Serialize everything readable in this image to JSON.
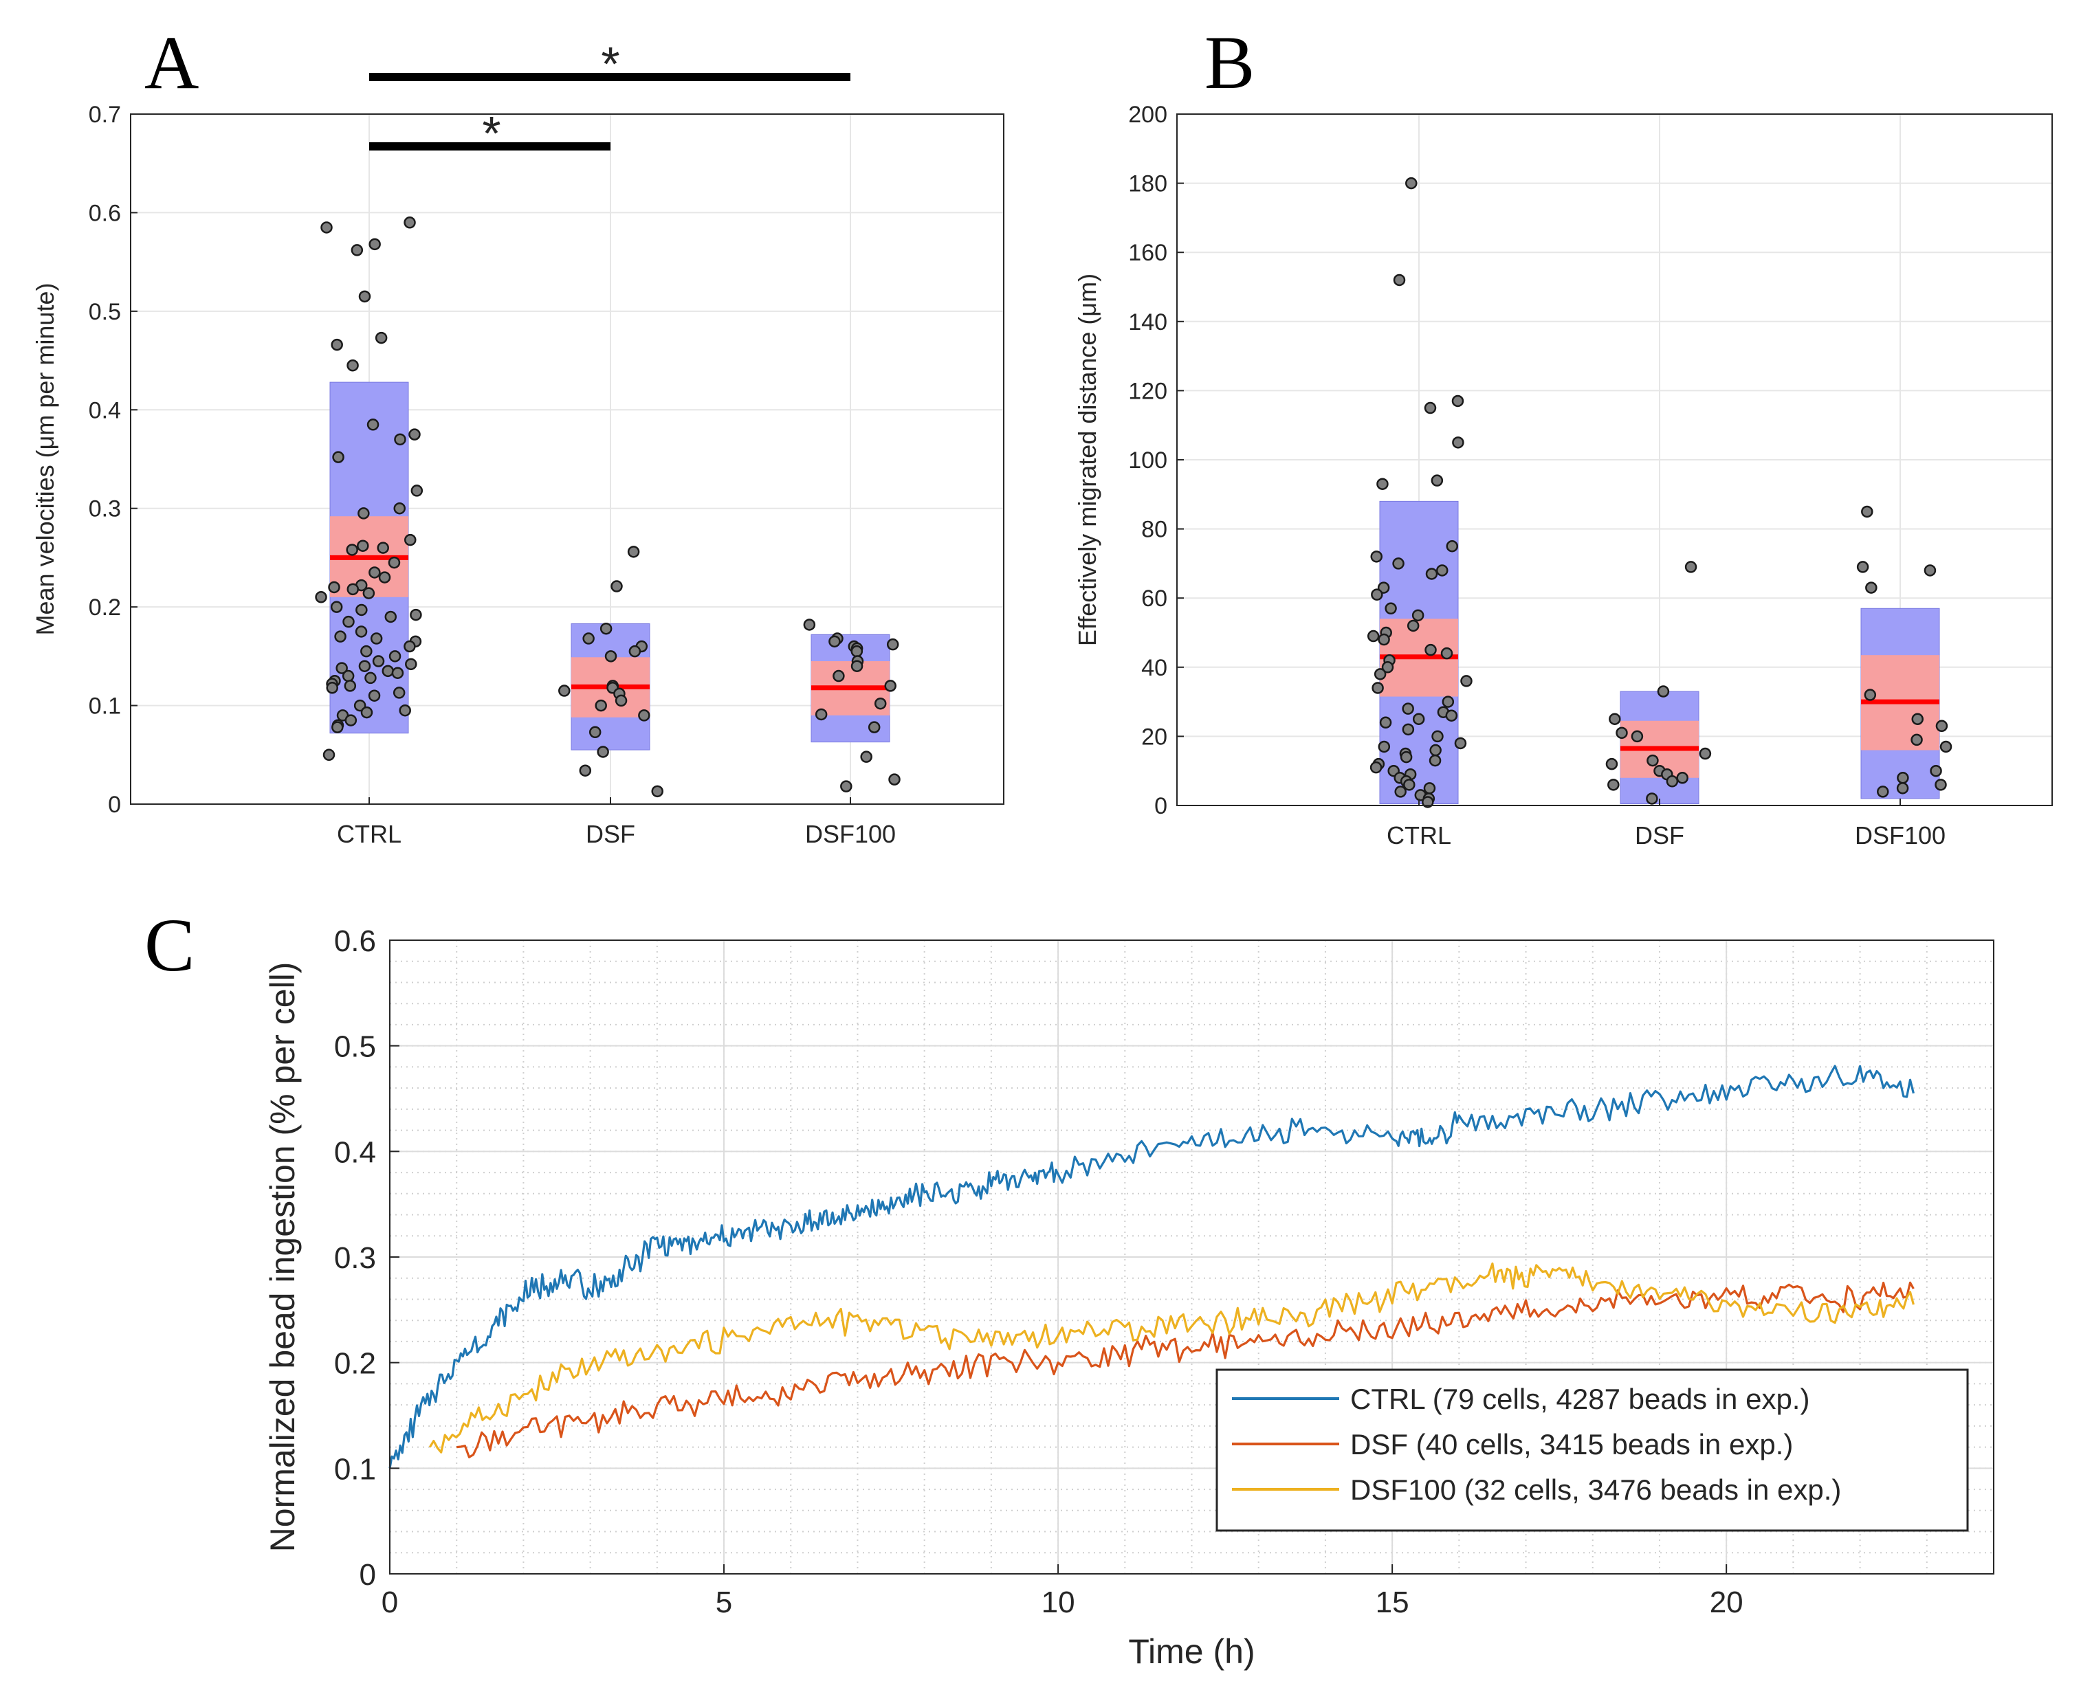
{
  "panels": {
    "A": "A",
    "B": "B",
    "C": "C"
  },
  "colors": {
    "iqr_box": "#9e9ef8",
    "sem_box": "#f7a0a0",
    "mean_line": "#ff0000",
    "dot_fill": "#7f7f7f",
    "ctrl": "#1f77b4",
    "dsf": "#d9541a",
    "dsf100": "#edb120"
  },
  "chart_data": [
    {
      "id": "A",
      "type": "box-scatter",
      "ylabel": "Mean velocities (μm per minute)",
      "ylim": [
        0,
        0.7
      ],
      "yticks": [
        0,
        0.1,
        0.2,
        0.3,
        0.4,
        0.5,
        0.6,
        0.7
      ],
      "tick_labels": [
        "0",
        "0.1",
        "0.2",
        "0.3",
        "0.4",
        "0.5",
        "0.6",
        "0.7"
      ],
      "categories": [
        "CTRL",
        "DSF",
        "DSF100"
      ],
      "groups": [
        {
          "name": "CTRL",
          "q1": 0.072,
          "q3": 0.428,
          "sem_low": 0.21,
          "sem_high": 0.292,
          "mean": 0.25,
          "points": [
            0.59,
            0.585,
            0.568,
            0.562,
            0.515,
            0.473,
            0.466,
            0.445,
            0.385,
            0.375,
            0.37,
            0.352,
            0.318,
            0.3,
            0.295,
            0.268,
            0.262,
            0.26,
            0.258,
            0.245,
            0.235,
            0.23,
            0.222,
            0.22,
            0.218,
            0.214,
            0.21,
            0.2,
            0.197,
            0.192,
            0.19,
            0.185,
            0.175,
            0.17,
            0.168,
            0.165,
            0.16,
            0.155,
            0.15,
            0.145,
            0.142,
            0.14,
            0.138,
            0.135,
            0.133,
            0.13,
            0.128,
            0.125,
            0.122,
            0.12,
            0.118,
            0.113,
            0.11,
            0.1,
            0.095,
            0.093,
            0.09,
            0.085,
            0.08,
            0.078,
            0.05
          ]
        },
        {
          "name": "DSF",
          "q1": 0.055,
          "q3": 0.183,
          "sem_low": 0.088,
          "sem_high": 0.149,
          "mean": 0.119,
          "points": [
            0.256,
            0.221,
            0.178,
            0.168,
            0.16,
            0.155,
            0.15,
            0.12,
            0.118,
            0.115,
            0.112,
            0.105,
            0.1,
            0.09,
            0.073,
            0.053,
            0.034,
            0.013
          ]
        },
        {
          "name": "DSF100",
          "q1": 0.063,
          "q3": 0.172,
          "sem_low": 0.09,
          "sem_high": 0.145,
          "mean": 0.118,
          "points": [
            0.182,
            0.168,
            0.165,
            0.162,
            0.16,
            0.158,
            0.155,
            0.145,
            0.14,
            0.13,
            0.12,
            0.102,
            0.091,
            0.078,
            0.048,
            0.025,
            0.018
          ]
        }
      ],
      "significance": [
        {
          "from": "CTRL",
          "to": "DSF",
          "label": "*"
        },
        {
          "from": "CTRL",
          "to": "DSF100",
          "label": "*"
        }
      ]
    },
    {
      "id": "B",
      "type": "box-scatter",
      "ylabel": "Effectively migrated distance (μm)",
      "ylim": [
        0,
        200
      ],
      "yticks": [
        0,
        20,
        40,
        60,
        80,
        100,
        120,
        140,
        160,
        180,
        200
      ],
      "tick_labels": [
        "0",
        "20",
        "40",
        "60",
        "80",
        "100",
        "120",
        "140",
        "160",
        "180",
        "200"
      ],
      "categories": [
        "CTRL",
        "DSF",
        "DSF100"
      ],
      "groups": [
        {
          "name": "CTRL",
          "q1": 0.5,
          "q3": 88,
          "sem_low": 31.5,
          "sem_high": 54,
          "mean": 43,
          "points": [
            180,
            152,
            117,
            115,
            105,
            94,
            93,
            75,
            72,
            70,
            68,
            67,
            63,
            61,
            57,
            55,
            52,
            50,
            49,
            48,
            45,
            44,
            42,
            40,
            38,
            36,
            34,
            30,
            28,
            27,
            26,
            25,
            24,
            22,
            20,
            18,
            17,
            16,
            15,
            14,
            13,
            12,
            11,
            10,
            9,
            8,
            7,
            6,
            5,
            4,
            3,
            2,
            1
          ]
        },
        {
          "name": "DSF",
          "q1": 0.5,
          "q3": 33,
          "sem_low": 8,
          "sem_high": 24.5,
          "mean": 16.5,
          "points": [
            69,
            33,
            25,
            21,
            20,
            15,
            13,
            12,
            10,
            9,
            8,
            7,
            6,
            2
          ]
        },
        {
          "name": "DSF100",
          "q1": 2,
          "q3": 57,
          "sem_low": 16,
          "sem_high": 43.5,
          "mean": 30,
          "points": [
            85,
            69,
            68,
            63,
            32,
            25,
            23,
            19,
            17,
            10,
            8,
            6,
            5,
            4
          ]
        }
      ]
    },
    {
      "id": "C",
      "type": "line",
      "xlabel": "Time (h)",
      "ylabel": "Normalized bead ingestion (% per cell)",
      "xlim": [
        0,
        24
      ],
      "ylim": [
        0,
        0.6
      ],
      "xticks": [
        0,
        5,
        10,
        15,
        20
      ],
      "xtick_labels": [
        "0",
        "5",
        "10",
        "15",
        "20"
      ],
      "yticks": [
        0,
        0.1,
        0.2,
        0.3,
        0.4,
        0.5,
        0.6
      ],
      "ytick_labels": [
        "0",
        "0.1",
        "0.2",
        "0.3",
        "0.4",
        "0.5",
        "0.6"
      ],
      "grid": true,
      "minor_grid": true,
      "legend_position": "bottom-right",
      "series": [
        {
          "name": "CTRL (79 cells, 4287 beads in exp.)",
          "color_key": "ctrl",
          "x": [
            0,
            0.5,
            1,
            1.5,
            2,
            2.5,
            3,
            3.5,
            4,
            4.5,
            5,
            5.5,
            6,
            6.5,
            7,
            7.5,
            8,
            8.5,
            9,
            9.5,
            10,
            11,
            12,
            13,
            14,
            15,
            15.5,
            16,
            17,
            18,
            19,
            20,
            21,
            22,
            22.8
          ],
          "y": [
            0.1,
            0.16,
            0.2,
            0.23,
            0.265,
            0.28,
            0.27,
            0.285,
            0.315,
            0.31,
            0.32,
            0.325,
            0.33,
            0.335,
            0.34,
            0.35,
            0.36,
            0.36,
            0.37,
            0.375,
            0.38,
            0.395,
            0.41,
            0.415,
            0.42,
            0.415,
            0.41,
            0.425,
            0.435,
            0.44,
            0.45,
            0.46,
            0.465,
            0.47,
            0.455
          ]
        },
        {
          "name": "DSF (40 cells, 3415 beads in exp.)",
          "color_key": "dsf",
          "x": [
            1,
            2,
            3,
            4,
            5,
            6,
            7,
            8,
            9,
            10,
            11,
            12,
            13,
            14,
            15,
            16,
            17,
            18,
            19,
            20,
            21,
            22,
            22.8
          ],
          "y": [
            0.12,
            0.135,
            0.145,
            0.155,
            0.165,
            0.175,
            0.185,
            0.19,
            0.2,
            0.2,
            0.21,
            0.215,
            0.22,
            0.225,
            0.23,
            0.24,
            0.25,
            0.255,
            0.26,
            0.26,
            0.265,
            0.26,
            0.27
          ]
        },
        {
          "name": "DSF100 (32 cells, 3476 beads in exp.)",
          "color_key": "dsf100",
          "x": [
            0.6,
            1.5,
            2.5,
            3.5,
            4.5,
            5.5,
            6.5,
            7.5,
            8.5,
            9.5,
            10.5,
            11.5,
            12.5,
            13.5,
            14.5,
            15.5,
            16.5,
            17.2,
            18,
            19,
            20,
            21,
            22,
            22.8
          ],
          "y": [
            0.12,
            0.155,
            0.185,
            0.205,
            0.215,
            0.23,
            0.24,
            0.235,
            0.225,
            0.225,
            0.23,
            0.235,
            0.24,
            0.245,
            0.255,
            0.27,
            0.28,
            0.285,
            0.275,
            0.265,
            0.255,
            0.245,
            0.245,
            0.255
          ]
        }
      ]
    }
  ]
}
